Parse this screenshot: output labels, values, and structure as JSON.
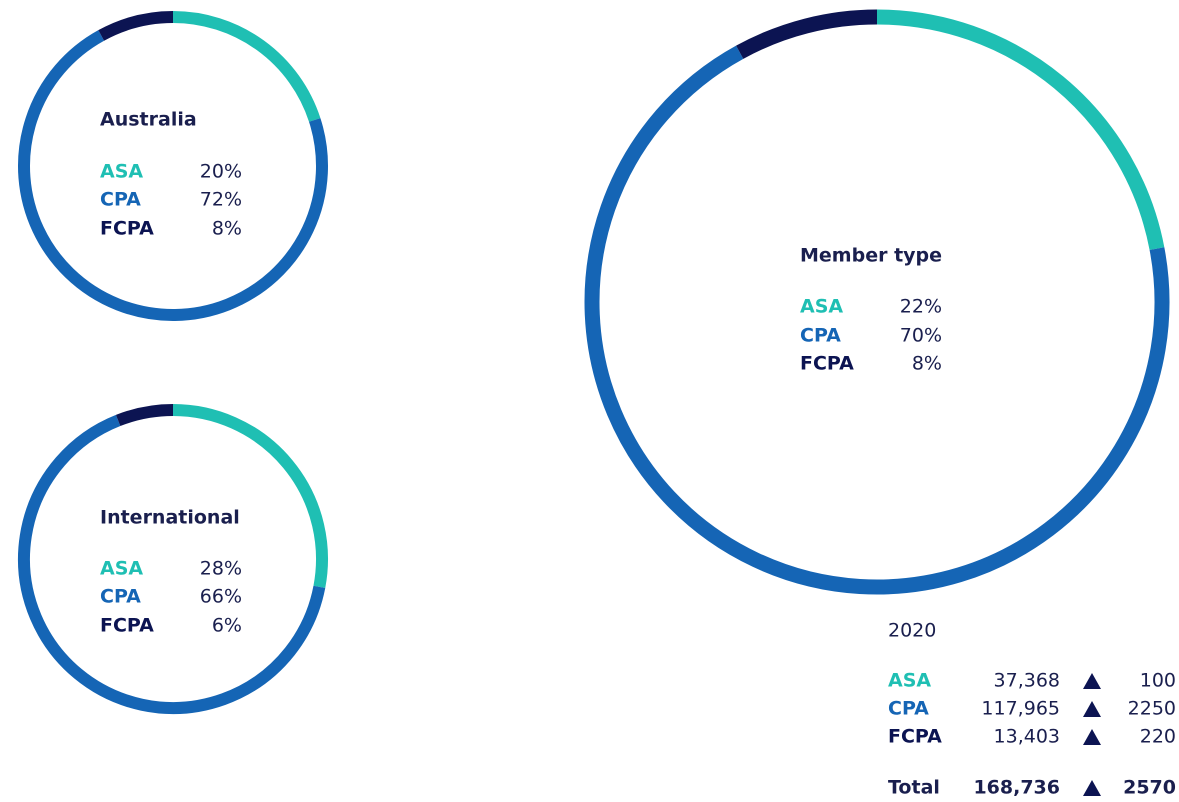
{
  "chart_data": [
    {
      "type": "donut",
      "title": "Australia",
      "categories": [
        "ASA",
        "CPA",
        "FCPA"
      ],
      "values": [
        20,
        72,
        8
      ],
      "value_labels": [
        "20%",
        "72%",
        "8%"
      ],
      "colors": [
        "#1fbfb3",
        "#1565b5",
        "#0c1452"
      ]
    },
    {
      "type": "donut",
      "title": "International",
      "categories": [
        "ASA",
        "CPA",
        "FCPA"
      ],
      "values": [
        28,
        66,
        6
      ],
      "value_labels": [
        "28%",
        "66%",
        "6%"
      ],
      "colors": [
        "#1fbfb3",
        "#1565b5",
        "#0c1452"
      ]
    },
    {
      "type": "donut",
      "title": "Member type",
      "categories": [
        "ASA",
        "CPA",
        "FCPA"
      ],
      "values": [
        22,
        70,
        8
      ],
      "value_labels": [
        "22%",
        "70%",
        "8%"
      ],
      "colors": [
        "#1fbfb3",
        "#1565b5",
        "#0c1452"
      ]
    }
  ],
  "table": {
    "title": "2020",
    "rows": [
      [
        "ASA",
        "37,368",
        "100"
      ],
      [
        "CPA",
        "117,965",
        "2250"
      ],
      [
        "FCPA",
        "13,403",
        "220"
      ]
    ],
    "total": [
      "Total",
      "168,736",
      "2570"
    ]
  }
}
